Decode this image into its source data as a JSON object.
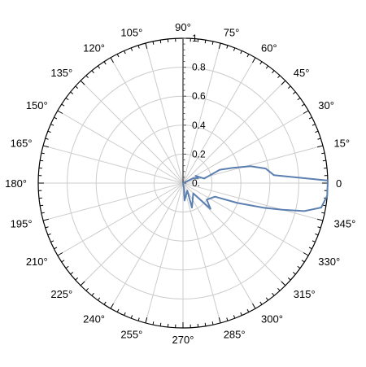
{
  "chart_data": {
    "type": "polar-line",
    "angle_unit": "degrees",
    "angle_tick_labels": [
      "0",
      "15°",
      "30°",
      "45°",
      "60°",
      "75°",
      "90°",
      "105°",
      "120°",
      "135°",
      "150°",
      "165°",
      "180°",
      "195°",
      "210°",
      "225°",
      "240°",
      "255°",
      "270°",
      "285°",
      "300°",
      "315°",
      "330°",
      "345°"
    ],
    "radial_tick_labels": [
      "0.",
      "0.2",
      "0.4",
      "0.6",
      "0.8",
      "1"
    ],
    "radial_range": [
      0,
      1
    ],
    "grid": true,
    "series": [
      {
        "color": "#5b7fb0",
        "points": [
          {
            "theta": 0,
            "r": 0.0
          },
          {
            "theta": 25,
            "r": 0.08
          },
          {
            "theta": 18,
            "r": 0.11
          },
          {
            "theta": 30,
            "r": 0.1
          },
          {
            "theta": 12,
            "r": 0.15
          },
          {
            "theta": 20,
            "r": 0.27
          },
          {
            "theta": 17,
            "r": 0.36
          },
          {
            "theta": 14,
            "r": 0.48
          },
          {
            "theta": 10,
            "r": 0.58
          },
          {
            "theta": 5,
            "r": 0.63
          },
          {
            "theta": 1,
            "r": 1.0
          },
          {
            "theta": 355,
            "r": 1.0
          },
          {
            "theta": 350,
            "r": 0.97
          },
          {
            "theta": 347,
            "r": 0.86
          },
          {
            "theta": 345,
            "r": 0.71
          },
          {
            "theta": 343,
            "r": 0.58
          },
          {
            "theta": 340,
            "r": 0.4
          },
          {
            "theta": 337,
            "r": 0.24
          },
          {
            "theta": 325,
            "r": 0.2
          },
          {
            "theta": 317,
            "r": 0.26
          },
          {
            "theta": 315,
            "r": 0.1
          },
          {
            "theta": 290,
            "r": 0.18
          },
          {
            "theta": 300,
            "r": 0.06
          },
          {
            "theta": 275,
            "r": 0.12
          },
          {
            "theta": 280,
            "r": 0.04
          },
          {
            "theta": 0,
            "r": 0.0
          }
        ]
      }
    ]
  }
}
